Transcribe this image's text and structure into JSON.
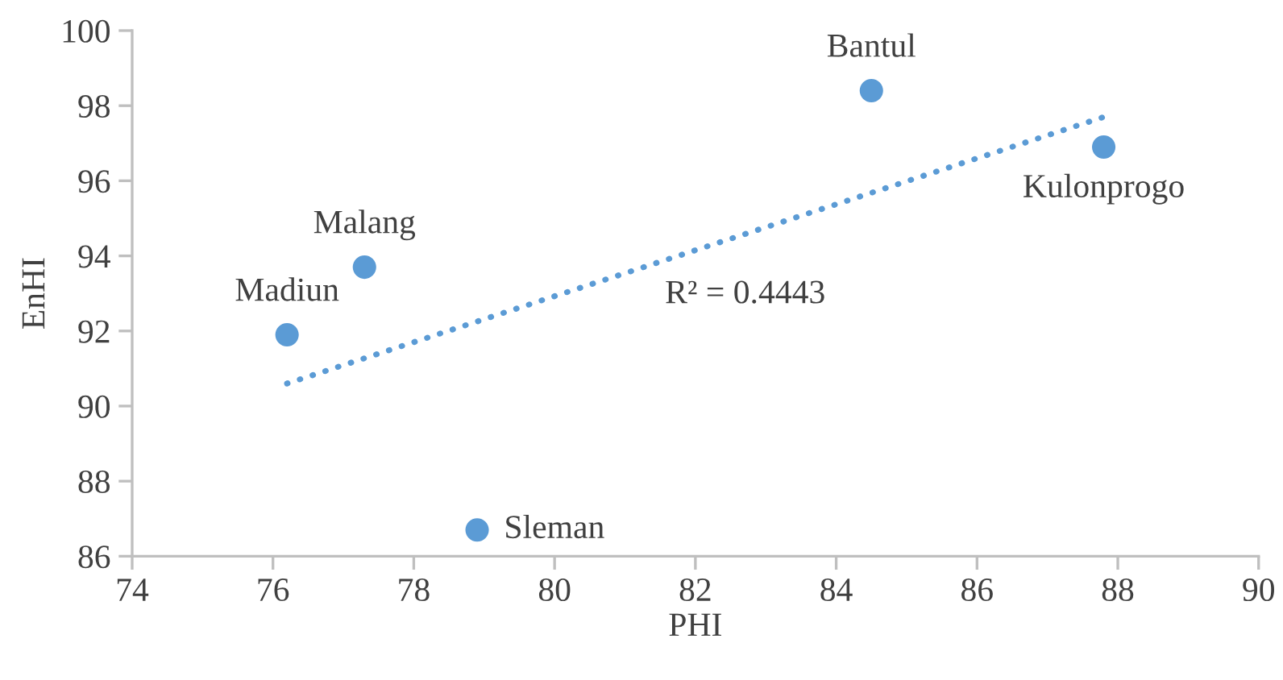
{
  "chart_data": {
    "type": "scatter",
    "xlabel": "PHI",
    "ylabel": "EnHI",
    "xlim": [
      74,
      90
    ],
    "xticks": [
      74,
      76,
      78,
      80,
      82,
      84,
      86,
      88,
      90
    ],
    "ylim": [
      86,
      100
    ],
    "yticks": [
      86,
      88,
      90,
      92,
      94,
      96,
      98,
      100
    ],
    "grid": false,
    "legend": false,
    "series": [
      {
        "color": "#5b9bd5",
        "marker": "circle",
        "x": [
          76.2,
          77.3,
          78.9,
          84.5,
          87.8
        ],
        "values": [
          91.9,
          93.7,
          86.7,
          98.4,
          96.9
        ]
      },
      {
        "type": "line",
        "color": "#5b9bd5",
        "line_style": "dotted",
        "marker": "none",
        "x": [
          76.2,
          87.8
        ],
        "values": [
          90.6,
          97.7
        ]
      }
    ],
    "annotations": [
      {
        "text": "Madiun",
        "x": 76.2,
        "y": 91.9
      },
      {
        "text": "Malang",
        "x": 77.3,
        "y": 93.7
      },
      {
        "text": "Sleman",
        "x": 78.9,
        "y": 86.7
      },
      {
        "text": "Bantul",
        "x": 84.5,
        "y": 98.4
      },
      {
        "text": "Kulonprogo",
        "x": 87.8,
        "y": 96.9
      },
      "R² = 0.4443"
    ]
  }
}
